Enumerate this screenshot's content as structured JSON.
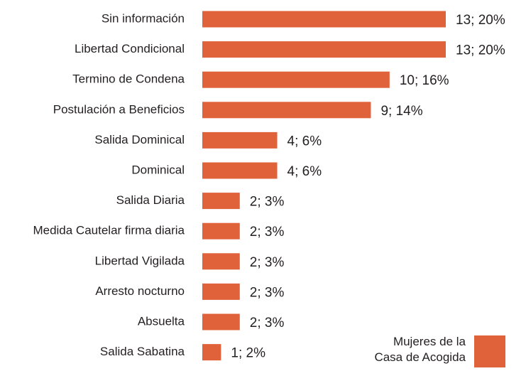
{
  "chart_data": {
    "type": "bar",
    "orientation": "horizontal",
    "categories": [
      "Sin información",
      "Libertad Condicional",
      "Termino de Condena",
      "Postulación a Beneficios",
      "Salida Dominical",
      "Dominical",
      "Salida Diaria",
      "Medida Cautelar firma diaria",
      "Libertad Vigilada",
      "Arresto nocturno",
      "Absuelta",
      "Salida Sabatina"
    ],
    "series": [
      {
        "name": "Mujeres de la Casa de Acogida",
        "color": "#e0623a",
        "values": [
          13,
          13,
          10,
          9,
          4,
          4,
          2,
          2,
          2,
          2,
          2,
          1
        ],
        "value_labels": [
          "13; 20%",
          "13; 20%",
          "10; 16%",
          "9; 14%",
          "4; 6%",
          "4; 6%",
          "2; 3%",
          "2; 3%",
          "2; 3%",
          "2; 3%",
          "2; 3%",
          "1; 2%"
        ]
      }
    ],
    "legend": "bottom-right"
  }
}
